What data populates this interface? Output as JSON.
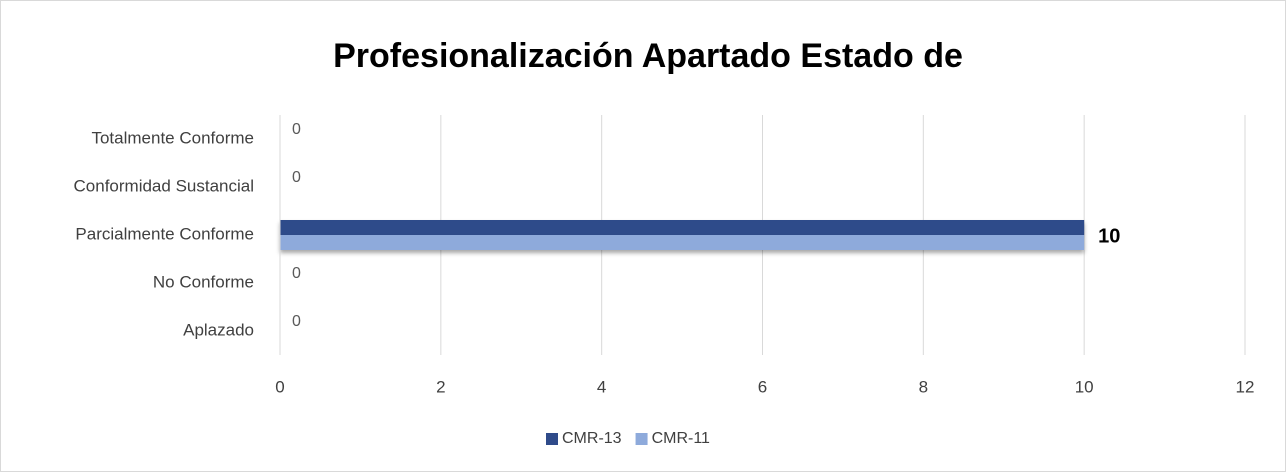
{
  "chart_data": {
    "type": "bar",
    "orientation": "horizontal",
    "title": "Profesionalización Apartado Estado de",
    "categories": [
      "Totalmente Conforme",
      "Conformidad Sustancial",
      "Parcialmente Conforme",
      "No Conforme",
      "Aplazado"
    ],
    "series": [
      {
        "name": "CMR-13",
        "color": "#2f4b8a",
        "values": [
          0,
          0,
          10,
          0,
          0
        ]
      },
      {
        "name": "CMR-11",
        "color": "#8eaadb",
        "values": [
          0,
          0,
          10,
          0,
          0
        ]
      }
    ],
    "xlim": [
      0,
      12
    ],
    "xticks": [
      0,
      2,
      4,
      6,
      8,
      10,
      12
    ],
    "grid": true,
    "legend": "bottom"
  }
}
